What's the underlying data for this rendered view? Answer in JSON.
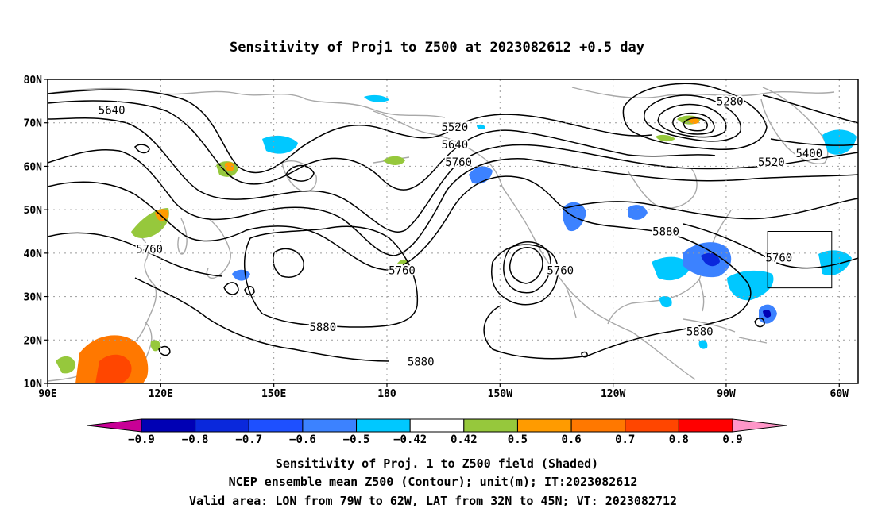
{
  "title": "Sensitivity of Proj1 to Z500 at 2023082612 +0.5 day",
  "map": {
    "lat_ticks": [
      "80N",
      "70N",
      "60N",
      "50N",
      "40N",
      "30N",
      "20N",
      "10N"
    ],
    "lon_ticks": [
      "90E",
      "120E",
      "150E",
      "180",
      "150W",
      "120W",
      "90W",
      "60W"
    ],
    "extent": {
      "lon_west": 90,
      "lon_east": 305,
      "lat_south": 10,
      "lat_north": 80
    },
    "valid_box": {
      "lon_west": 281,
      "lon_east": 298,
      "lat_south": 32,
      "lat_north": 45
    },
    "coastline_color": "#a8a8a8",
    "contour_color": "#000000",
    "contour_labels": [
      {
        "text": "5640",
        "lon": 107,
        "lat": 73
      },
      {
        "text": "5520",
        "lon": 198,
        "lat": 69
      },
      {
        "text": "5640",
        "lon": 198,
        "lat": 65
      },
      {
        "text": "5760",
        "lon": 199,
        "lat": 61
      },
      {
        "text": "5280",
        "lon": 271,
        "lat": 75
      },
      {
        "text": "5400",
        "lon": 292,
        "lat": 63
      },
      {
        "text": "5520",
        "lon": 282,
        "lat": 61
      },
      {
        "text": "5880",
        "lon": 254,
        "lat": 45
      },
      {
        "text": "5760",
        "lon": 284,
        "lat": 39
      },
      {
        "text": "5760",
        "lon": 117,
        "lat": 41
      },
      {
        "text": "5760",
        "lon": 184,
        "lat": 36
      },
      {
        "text": "5760",
        "lon": 226,
        "lat": 36
      },
      {
        "text": "5880",
        "lon": 163,
        "lat": 23
      },
      {
        "text": "5880",
        "lon": 189,
        "lat": 15
      },
      {
        "text": "5880",
        "lon": 263,
        "lat": 22
      }
    ]
  },
  "colorbar": {
    "labels": [
      "−0.9",
      "−0.8",
      "−0.7",
      "−0.6",
      "−0.5",
      "−0.42",
      "0.42",
      "0.5",
      "0.6",
      "0.7",
      "0.8",
      "0.9"
    ],
    "colors": [
      "#0000b4",
      "#0a28dc",
      "#1e50ff",
      "#3c82ff",
      "#00c8ff",
      "#ffffff",
      "#96c83c",
      "#ff9b00",
      "#ff7800",
      "#ff4600",
      "#ff0000"
    ],
    "low_end_color": "#c80096",
    "high_end_color": "#ff96c8"
  },
  "captions": [
    "Sensitivity of Proj. 1 to Z500 field (Shaded)",
    "NCEP ensemble mean Z500 (Contour); unit(m); IT:2023082612",
    "Valid area: LON from 79W to 62W, LAT from 32N to 45N; VT: 2023082712"
  ]
}
